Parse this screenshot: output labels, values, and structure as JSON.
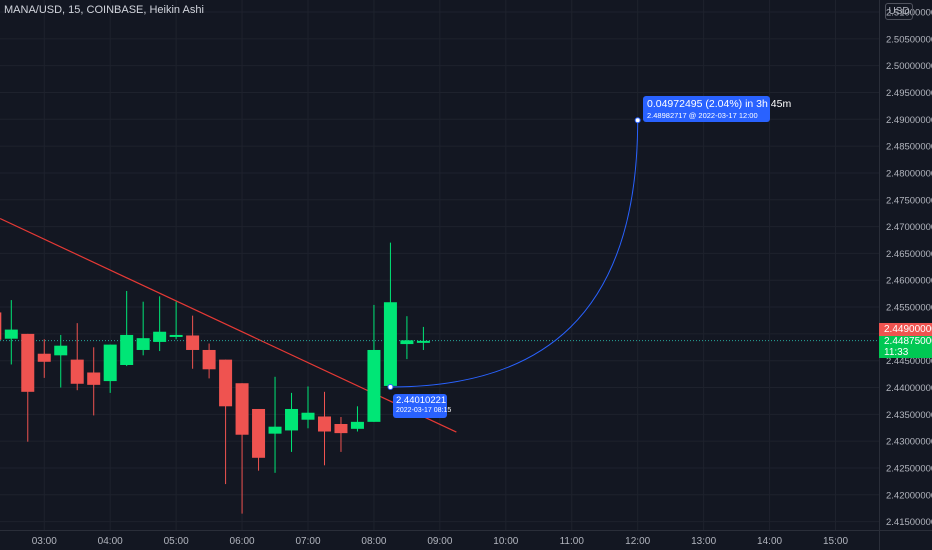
{
  "header": {
    "title": "MANA/USD, 15, COINBASE, Heikin Ashi",
    "currency": "USD"
  },
  "price_tags": {
    "current_price": "2.44900000",
    "last_price": "2.44875000",
    "countdown": "11:33"
  },
  "projection": {
    "target_line1": "0.04972495 (2.04%) in 3h 45m",
    "target_line2": "2.48982717 @ 2022-03-17  12:00",
    "start_line1": "2.44010221",
    "start_line2": "2022-03-17 08:15"
  },
  "colors": {
    "background": "#131722",
    "bull": "#00e676",
    "bear": "#ef5350",
    "trendline": "#e53935",
    "projection": "#2962ff",
    "price_line": "#26a69a",
    "text": "#b2b5be"
  },
  "chart_data": {
    "type": "candlestick",
    "title": "MANA/USD, 15, COINBASE, Heikin Ashi",
    "xlabel": "",
    "ylabel": "",
    "x_ticks": [
      {
        "label": "03:00",
        "t": 3.0
      },
      {
        "label": "04:00",
        "t": 4.0
      },
      {
        "label": "05:00",
        "t": 5.0
      },
      {
        "label": "06:00",
        "t": 6.0
      },
      {
        "label": "07:00",
        "t": 7.0
      },
      {
        "label": "08:00",
        "t": 8.0
      },
      {
        "label": "09:00",
        "t": 9.0
      },
      {
        "label": "10:00",
        "t": 10.0
      },
      {
        "label": "11:00",
        "t": 11.0
      },
      {
        "label": "12:00",
        "t": 12.0
      },
      {
        "label": "13:00",
        "t": 13.0
      },
      {
        "label": "14:00",
        "t": 14.0
      },
      {
        "label": "15:00",
        "t": 15.0
      }
    ],
    "y_ticks": [
      "2.51000000",
      "2.50500000",
      "2.50000000",
      "2.49500000",
      "2.49000000",
      "2.48500000",
      "2.48000000",
      "2.47500000",
      "2.47000000",
      "2.46500000",
      "2.46000000",
      "2.45500000",
      "2.45000000",
      "2.44500000",
      "2.44000000",
      "2.43500000",
      "2.43000000",
      "2.42500000",
      "2.42000000",
      "2.41500000"
    ],
    "ylim": [
      2.41344,
      2.51224
    ],
    "xlim": [
      2.3288,
      15.6597
    ],
    "grid": true,
    "candles": [
      {
        "t": 2.25,
        "open": 2.454,
        "close": 2.4489,
        "high": 2.4662,
        "low": 2.446
      },
      {
        "t": 2.5,
        "open": 2.4491,
        "close": 2.4508,
        "high": 2.4563,
        "low": 2.4443
      },
      {
        "t": 2.75,
        "open": 2.45,
        "close": 2.4392,
        "high": 2.45,
        "low": 2.4299
      },
      {
        "t": 3.0,
        "open": 2.4463,
        "close": 2.4448,
        "high": 2.449,
        "low": 2.4418
      },
      {
        "t": 3.25,
        "open": 2.446,
        "close": 2.4478,
        "high": 2.4498,
        "low": 2.44
      },
      {
        "t": 3.5,
        "open": 2.4452,
        "close": 2.4407,
        "high": 2.452,
        "low": 2.4395
      },
      {
        "t": 3.75,
        "open": 2.4428,
        "close": 2.4405,
        "high": 2.4475,
        "low": 2.4348
      },
      {
        "t": 4.0,
        "open": 2.4412,
        "close": 2.448,
        "high": 2.448,
        "low": 2.439
      },
      {
        "t": 4.25,
        "open": 2.4442,
        "close": 2.4498,
        "high": 2.458,
        "low": 2.444
      },
      {
        "t": 4.5,
        "open": 2.447,
        "close": 2.4492,
        "high": 2.456,
        "low": 2.446
      },
      {
        "t": 4.75,
        "open": 2.4485,
        "close": 2.4504,
        "high": 2.457,
        "low": 2.4468
      },
      {
        "t": 5.0,
        "open": 2.4496,
        "close": 2.4498,
        "high": 2.456,
        "low": 2.449
      },
      {
        "t": 5.25,
        "open": 2.4497,
        "close": 2.447,
        "high": 2.4534,
        "low": 2.4435
      },
      {
        "t": 5.5,
        "open": 2.447,
        "close": 2.4434,
        "high": 2.4482,
        "low": 2.4417
      },
      {
        "t": 5.75,
        "open": 2.4452,
        "close": 2.4365,
        "high": 2.4452,
        "low": 2.422
      },
      {
        "t": 6.0,
        "open": 2.4408,
        "close": 2.4312,
        "high": 2.4408,
        "low": 2.4165
      },
      {
        "t": 6.25,
        "open": 2.436,
        "close": 2.4269,
        "high": 2.436,
        "low": 2.4245
      },
      {
        "t": 6.5,
        "open": 2.4314,
        "close": 2.4327,
        "high": 2.442,
        "low": 2.4241
      },
      {
        "t": 6.75,
        "open": 2.432,
        "close": 2.436,
        "high": 2.439,
        "low": 2.428
      },
      {
        "t": 7.0,
        "open": 2.434,
        "close": 2.4353,
        "high": 2.4402,
        "low": 2.4324
      },
      {
        "t": 7.25,
        "open": 2.4346,
        "close": 2.4318,
        "high": 2.4392,
        "low": 2.4255
      },
      {
        "t": 7.5,
        "open": 2.4332,
        "close": 2.4315,
        "high": 2.4345,
        "low": 2.428
      },
      {
        "t": 7.75,
        "open": 2.4323,
        "close": 2.4336,
        "high": 2.4365,
        "low": 2.4318
      },
      {
        "t": 8.0,
        "open": 2.4336,
        "close": 2.447,
        "high": 2.4554,
        "low": 2.4336
      },
      {
        "t": 8.25,
        "open": 2.4403,
        "close": 2.4559,
        "high": 2.467,
        "low": 2.44
      },
      {
        "t": 8.5,
        "open": 2.4481,
        "close": 2.4488,
        "high": 2.4533,
        "low": 2.4453
      },
      {
        "t": 8.75,
        "open": 2.4484,
        "close": 2.4487,
        "high": 2.4513,
        "low": 2.447
      }
    ],
    "current_price": 2.449,
    "last_price": 2.44875,
    "trendline": {
      "start": {
        "t": 2.33,
        "price": 2.4715
      },
      "end": {
        "t": 9.25,
        "price": 2.4317
      }
    },
    "projection": {
      "start": {
        "t": 8.25,
        "price": 2.44010221
      },
      "end": {
        "t": 12.0,
        "price": 2.48982717
      }
    }
  }
}
